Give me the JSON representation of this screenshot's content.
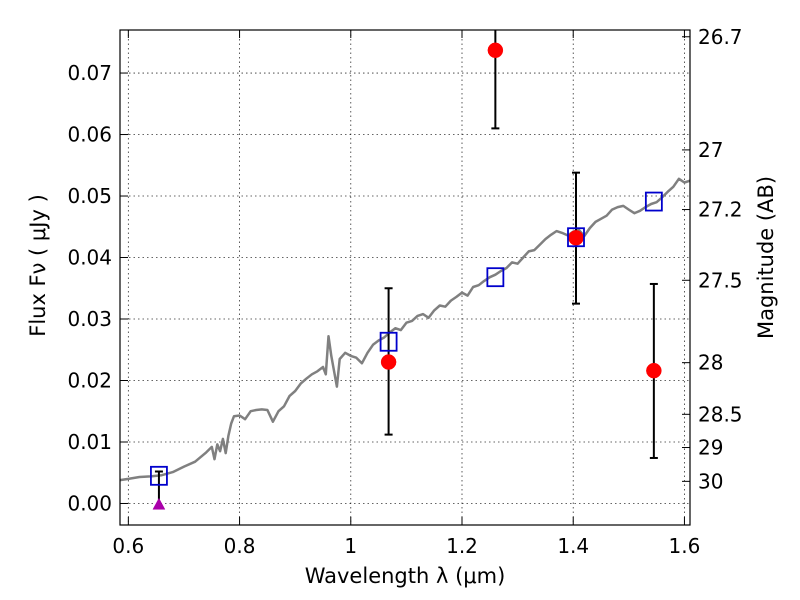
{
  "chart_data": {
    "type": "scatter",
    "xlabel": "Wavelength  λ (μm)",
    "ylabel": "Flux  Fν  ( μJy )",
    "ylabel_right": "Magnitude (AB)",
    "xlim": [
      0.585,
      1.61
    ],
    "ylim": [
      -0.0035,
      0.077
    ],
    "grid": true,
    "x_ticks": [
      {
        "value": 0.6,
        "label": "0.6"
      },
      {
        "value": 0.8,
        "label": "0.8"
      },
      {
        "value": 1.0,
        "label": "1"
      },
      {
        "value": 1.2,
        "label": "1.2"
      },
      {
        "value": 1.4,
        "label": "1.4"
      },
      {
        "value": 1.6,
        "label": "1.6"
      }
    ],
    "y_ticks": [
      {
        "value": 0.0,
        "label": "0.00"
      },
      {
        "value": 0.01,
        "label": "0.01"
      },
      {
        "value": 0.02,
        "label": "0.02"
      },
      {
        "value": 0.03,
        "label": "0.03"
      },
      {
        "value": 0.04,
        "label": "0.04"
      },
      {
        "value": 0.05,
        "label": "0.05"
      },
      {
        "value": 0.06,
        "label": "0.06"
      },
      {
        "value": 0.07,
        "label": "0.07"
      }
    ],
    "right_ticks": [
      {
        "flux": 0.0759,
        "label": "26.7"
      },
      {
        "flux": 0.0575,
        "label": "27"
      },
      {
        "flux": 0.0478,
        "label": "27.2"
      },
      {
        "flux": 0.0363,
        "label": "27.5"
      },
      {
        "flux": 0.0229,
        "label": "28"
      },
      {
        "flux": 0.0145,
        "label": "28.5"
      },
      {
        "flux": 0.0091,
        "label": "29"
      },
      {
        "flux": 0.0036,
        "label": "30"
      }
    ],
    "colors": {
      "model": "#808080",
      "observed": "#ff0000",
      "model_photometry": "#0000cc",
      "upper_limit": "#aa00aa",
      "error_bar": "#000000"
    },
    "series": [
      {
        "role": "model-spectrum",
        "type": "line",
        "points": [
          [
            0.585,
            0.0038
          ],
          [
            0.6,
            0.004
          ],
          [
            0.62,
            0.0043
          ],
          [
            0.64,
            0.0044
          ],
          [
            0.66,
            0.0046
          ],
          [
            0.68,
            0.0051
          ],
          [
            0.7,
            0.006
          ],
          [
            0.72,
            0.0068
          ],
          [
            0.74,
            0.0083
          ],
          [
            0.75,
            0.0092
          ],
          [
            0.755,
            0.0072
          ],
          [
            0.76,
            0.0096
          ],
          [
            0.765,
            0.0085
          ],
          [
            0.77,
            0.0105
          ],
          [
            0.775,
            0.0082
          ],
          [
            0.78,
            0.011
          ],
          [
            0.785,
            0.013
          ],
          [
            0.79,
            0.0142
          ],
          [
            0.8,
            0.0143
          ],
          [
            0.81,
            0.0137
          ],
          [
            0.82,
            0.015
          ],
          [
            0.83,
            0.0152
          ],
          [
            0.84,
            0.0153
          ],
          [
            0.85,
            0.0152
          ],
          [
            0.86,
            0.0133
          ],
          [
            0.87,
            0.015
          ],
          [
            0.88,
            0.0158
          ],
          [
            0.89,
            0.0175
          ],
          [
            0.9,
            0.0183
          ],
          [
            0.91,
            0.0195
          ],
          [
            0.92,
            0.0203
          ],
          [
            0.93,
            0.021
          ],
          [
            0.94,
            0.0215
          ],
          [
            0.95,
            0.0222
          ],
          [
            0.955,
            0.021
          ],
          [
            0.96,
            0.0272
          ],
          [
            0.965,
            0.024
          ],
          [
            0.97,
            0.0215
          ],
          [
            0.975,
            0.019
          ],
          [
            0.98,
            0.0235
          ],
          [
            0.99,
            0.0245
          ],
          [
            1.0,
            0.024
          ],
          [
            1.01,
            0.0237
          ],
          [
            1.02,
            0.0228
          ],
          [
            1.03,
            0.0245
          ],
          [
            1.04,
            0.0258
          ],
          [
            1.05,
            0.0265
          ],
          [
            1.06,
            0.027
          ],
          [
            1.07,
            0.0278
          ],
          [
            1.08,
            0.0285
          ],
          [
            1.09,
            0.0282
          ],
          [
            1.1,
            0.0294
          ],
          [
            1.11,
            0.0297
          ],
          [
            1.12,
            0.0305
          ],
          [
            1.13,
            0.0308
          ],
          [
            1.14,
            0.0302
          ],
          [
            1.15,
            0.0314
          ],
          [
            1.16,
            0.0322
          ],
          [
            1.17,
            0.032
          ],
          [
            1.18,
            0.033
          ],
          [
            1.19,
            0.0336
          ],
          [
            1.2,
            0.0343
          ],
          [
            1.21,
            0.0338
          ],
          [
            1.22,
            0.0352
          ],
          [
            1.23,
            0.0355
          ],
          [
            1.24,
            0.0362
          ],
          [
            1.25,
            0.0368
          ],
          [
            1.26,
            0.0372
          ],
          [
            1.27,
            0.0378
          ],
          [
            1.28,
            0.0383
          ],
          [
            1.29,
            0.0392
          ],
          [
            1.3,
            0.039
          ],
          [
            1.31,
            0.04
          ],
          [
            1.32,
            0.041
          ],
          [
            1.33,
            0.0412
          ],
          [
            1.34,
            0.0421
          ],
          [
            1.35,
            0.043
          ],
          [
            1.36,
            0.0437
          ],
          [
            1.37,
            0.0443
          ],
          [
            1.38,
            0.044
          ],
          [
            1.39,
            0.0436
          ],
          [
            1.4,
            0.0442
          ],
          [
            1.41,
            0.0445
          ],
          [
            1.42,
            0.0435
          ],
          [
            1.43,
            0.0448
          ],
          [
            1.44,
            0.0458
          ],
          [
            1.45,
            0.0463
          ],
          [
            1.46,
            0.0468
          ],
          [
            1.47,
            0.0478
          ],
          [
            1.48,
            0.0482
          ],
          [
            1.49,
            0.0484
          ],
          [
            1.5,
            0.0478
          ],
          [
            1.51,
            0.0472
          ],
          [
            1.52,
            0.0476
          ],
          [
            1.53,
            0.0482
          ],
          [
            1.54,
            0.0487
          ],
          [
            1.55,
            0.049
          ],
          [
            1.56,
            0.0498
          ],
          [
            1.57,
            0.0507
          ],
          [
            1.58,
            0.0515
          ],
          [
            1.59,
            0.0528
          ],
          [
            1.6,
            0.0522
          ],
          [
            1.61,
            0.0525
          ]
        ]
      },
      {
        "role": "observed-photometry",
        "type": "scatter",
        "marker": "circle",
        "points": [
          {
            "x": 1.068,
            "y": 0.023,
            "err_low": 0.0112,
            "err_high": 0.035
          },
          {
            "x": 1.26,
            "y": 0.0737,
            "err_low": 0.061,
            "err_high": 0.077
          },
          {
            "x": 1.405,
            "y": 0.0432,
            "err_low": 0.0325,
            "err_high": 0.0538
          },
          {
            "x": 1.545,
            "y": 0.0216,
            "err_low": 0.0074,
            "err_high": 0.0357
          }
        ]
      },
      {
        "role": "model-photometry",
        "type": "scatter",
        "marker": "open-square",
        "points": [
          {
            "x": 0.655,
            "y": 0.0045
          },
          {
            "x": 1.068,
            "y": 0.0263
          },
          {
            "x": 1.26,
            "y": 0.0368
          },
          {
            "x": 1.405,
            "y": 0.0433
          },
          {
            "x": 1.545,
            "y": 0.0491
          }
        ]
      },
      {
        "role": "upper-limit",
        "type": "scatter",
        "marker": "triangle",
        "points": [
          {
            "x": 0.655,
            "y": -0.0003,
            "err_low": -0.0003,
            "err_high": 0.0052
          }
        ]
      }
    ]
  }
}
